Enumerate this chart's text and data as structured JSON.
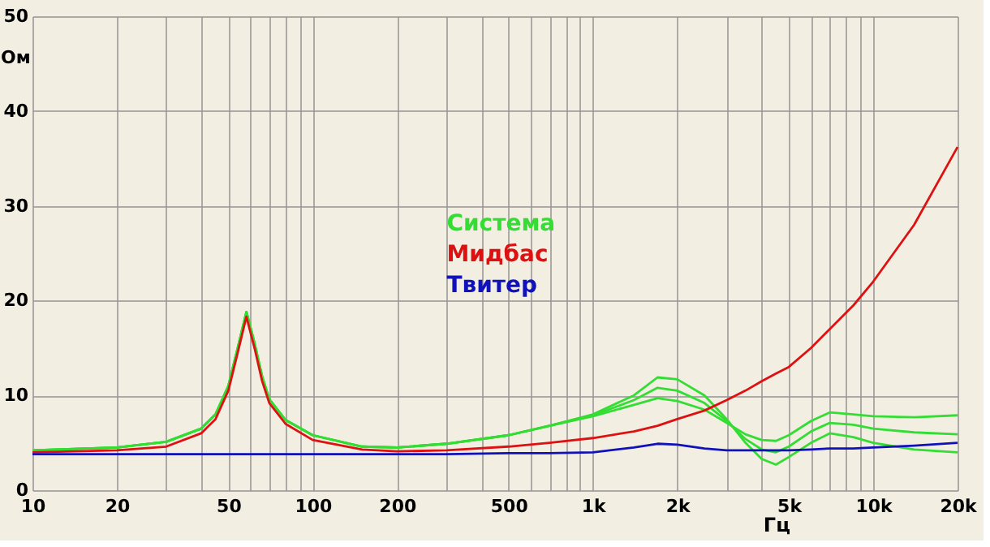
{
  "chart_data": {
    "type": "line",
    "xlabel": "Гц",
    "ylabel": "Ом",
    "xlim": [
      10,
      20000
    ],
    "ylim": [
      0,
      50
    ],
    "xticks": [
      10,
      20,
      {
        "value": 30,
        "label": null
      },
      {
        "value": 40,
        "label": null
      },
      50,
      {
        "value": 60,
        "label": null
      },
      {
        "value": 70,
        "label": null
      },
      {
        "value": 80,
        "label": null
      },
      {
        "value": 90,
        "label": null
      },
      100,
      200,
      {
        "value": 300,
        "label": null
      },
      {
        "value": 400,
        "label": null
      },
      500,
      {
        "value": 600,
        "label": null
      },
      {
        "value": 700,
        "label": null
      },
      {
        "value": 800,
        "label": null
      },
      {
        "value": 900,
        "label": null
      },
      {
        "value": 1000,
        "label": "1k"
      },
      {
        "value": 2000,
        "label": "2k"
      },
      {
        "value": 3000,
        "label": null
      },
      {
        "value": 4000,
        "label": null
      },
      {
        "value": 5000,
        "label": "5k"
      },
      {
        "value": 6000,
        "label": null
      },
      {
        "value": 7000,
        "label": null
      },
      {
        "value": 8000,
        "label": null
      },
      {
        "value": 9000,
        "label": null
      },
      {
        "value": 10000,
        "label": "10k"
      },
      {
        "value": 20000,
        "label": "20k"
      }
    ],
    "yticks": [
      0,
      10,
      20,
      30,
      40,
      50
    ],
    "log": "x",
    "grid": true,
    "legend": "center",
    "line_style": "solid",
    "marker": "none",
    "x": [
      10,
      20,
      30,
      40,
      45,
      50,
      54,
      58,
      62,
      66,
      70,
      80,
      100,
      150,
      200,
      300,
      500,
      700,
      1000,
      1400,
      1700,
      2000,
      2500,
      3000,
      3500,
      4000,
      4500,
      5000,
      6000,
      7000,
      8500,
      10000,
      14000,
      20000
    ],
    "series": [
      {
        "name": "Система",
        "color": "#33dd33",
        "values": [
          4.2,
          4.5,
          5.1,
          6.5,
          8.0,
          11.0,
          15.0,
          18.8,
          15.5,
          12.0,
          9.6,
          7.4,
          5.8,
          4.6,
          4.5,
          4.9,
          5.8,
          6.8,
          8.0,
          10.0,
          11.9,
          11.7,
          10.0,
          7.5,
          5.0,
          3.3,
          2.7,
          3.5,
          5.0,
          6.0,
          5.6,
          5.0,
          4.3,
          4.0
        ]
      },
      {
        "color": "#33dd33",
        "values": [
          4.2,
          4.5,
          5.1,
          6.5,
          8.0,
          11.0,
          15.0,
          18.8,
          15.5,
          12.0,
          9.6,
          7.4,
          5.8,
          4.6,
          4.5,
          4.9,
          5.8,
          6.8,
          7.9,
          9.5,
          10.8,
          10.5,
          9.2,
          7.3,
          5.4,
          4.3,
          4.0,
          4.6,
          6.2,
          7.1,
          6.9,
          6.5,
          6.1,
          5.9
        ]
      },
      {
        "color": "#33dd33",
        "values": [
          4.2,
          4.5,
          5.1,
          6.5,
          8.0,
          11.0,
          15.0,
          18.8,
          15.5,
          12.0,
          9.6,
          7.4,
          5.8,
          4.6,
          4.5,
          4.9,
          5.8,
          6.8,
          7.8,
          9.0,
          9.7,
          9.4,
          8.5,
          7.1,
          5.9,
          5.3,
          5.2,
          5.8,
          7.3,
          8.2,
          8.0,
          7.8,
          7.7,
          7.9
        ]
      },
      {
        "name": "Мидбас",
        "color": "#dd1111",
        "values": [
          4.0,
          4.2,
          4.6,
          6.0,
          7.5,
          10.5,
          14.5,
          18.3,
          15.0,
          11.5,
          9.2,
          7.0,
          5.3,
          4.3,
          4.1,
          4.2,
          4.6,
          5.0,
          5.5,
          6.2,
          6.8,
          7.5,
          8.4,
          9.5,
          10.5,
          11.5,
          12.3,
          13.0,
          15.0,
          17.0,
          19.5,
          22.0,
          28.0,
          36.2
        ]
      },
      {
        "name": "Твитер",
        "color": "#1111bb",
        "values": [
          3.8,
          3.8,
          3.8,
          3.8,
          3.8,
          3.8,
          3.8,
          3.8,
          3.8,
          3.8,
          3.8,
          3.8,
          3.8,
          3.8,
          3.8,
          3.8,
          3.9,
          3.9,
          4.0,
          4.5,
          4.9,
          4.8,
          4.4,
          4.2,
          4.2,
          4.2,
          4.2,
          4.2,
          4.3,
          4.4,
          4.4,
          4.5,
          4.7,
          5.0
        ]
      }
    ]
  }
}
